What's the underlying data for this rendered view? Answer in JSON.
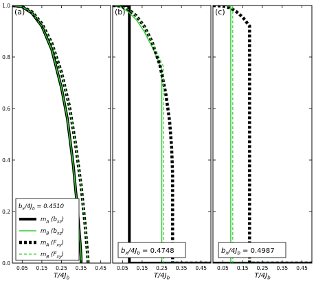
{
  "chart_data": [
    {
      "type": "line",
      "panel_label": "(a)",
      "xlabel": "T/4J_b",
      "xlim": [
        0,
        0.5
      ],
      "ylim": [
        0,
        1.0
      ],
      "xticks": [
        0.05,
        0.15,
        0.25,
        0.35,
        0.45
      ],
      "yticks": [
        0.0,
        0.2,
        0.4,
        0.6,
        0.8,
        1.0
      ],
      "legend_title": "b_x/4J_b = 0.4510",
      "legend": [
        "m_A (b_xz)",
        "m_B (b_xz)",
        "m_A (F_xy)",
        "m_B (F_xy)"
      ],
      "series": [
        {
          "name": "m_A (b_xz)",
          "style": "solid-thick",
          "color": "#000000",
          "x": [
            0.0,
            0.05,
            0.1,
            0.15,
            0.2,
            0.25,
            0.28,
            0.31,
            0.33,
            0.345,
            0.35,
            0.35
          ],
          "y": [
            1.0,
            0.995,
            0.97,
            0.92,
            0.83,
            0.68,
            0.56,
            0.38,
            0.22,
            0.08,
            0.02,
            0.0
          ]
        },
        {
          "name": "m_B (b_xz)",
          "style": "solid-thin",
          "color": "#33cc33",
          "x": [
            0.0,
            0.05,
            0.1,
            0.15,
            0.2,
            0.25,
            0.28,
            0.31,
            0.33,
            0.345,
            0.35,
            0.35
          ],
          "y": [
            1.0,
            0.995,
            0.97,
            0.92,
            0.83,
            0.68,
            0.56,
            0.38,
            0.22,
            0.08,
            0.02,
            0.0
          ]
        },
        {
          "name": "m_A (F_xy)",
          "style": "dotted-thick",
          "color": "#000000",
          "x": [
            0.0,
            0.05,
            0.1,
            0.15,
            0.2,
            0.25,
            0.29,
            0.32,
            0.35,
            0.37,
            0.38,
            0.385,
            0.385
          ],
          "y": [
            1.0,
            0.995,
            0.975,
            0.93,
            0.855,
            0.74,
            0.61,
            0.47,
            0.3,
            0.15,
            0.06,
            0.01,
            0.0
          ]
        },
        {
          "name": "m_B (F_xy)",
          "style": "dashed-thin",
          "color": "#33cc33",
          "x": [
            0.0,
            0.05,
            0.1,
            0.15,
            0.2,
            0.25,
            0.29,
            0.32,
            0.35,
            0.37,
            0.38,
            0.385,
            0.385
          ],
          "y": [
            1.0,
            0.995,
            0.975,
            0.93,
            0.855,
            0.74,
            0.61,
            0.47,
            0.3,
            0.15,
            0.06,
            0.01,
            0.0
          ]
        }
      ]
    },
    {
      "type": "line",
      "panel_label": "(b)",
      "xlabel": "T/4J_b",
      "xlim": [
        0,
        0.5
      ],
      "ylim": [
        0,
        1.0
      ],
      "xticks": [
        0.05,
        0.15,
        0.25,
        0.35,
        0.45
      ],
      "box_label": "b_x/4J_b = ",
      "box_value": "0.4748",
      "series": [
        {
          "name": "m_A (b_xz)",
          "style": "solid-thick",
          "color": "#000000",
          "x": [
            0.0,
            0.085,
            0.085,
            0.5
          ],
          "y": [
            1.0,
            1.0,
            0.0,
            0.0
          ]
        },
        {
          "name": "m_B (b_xz)",
          "style": "solid-thin",
          "color": "#33cc33",
          "x": [
            0.0,
            0.04,
            0.08,
            0.12,
            0.16,
            0.2,
            0.23,
            0.25,
            0.25,
            0.5
          ],
          "y": [
            1.0,
            0.995,
            0.975,
            0.945,
            0.9,
            0.84,
            0.79,
            0.75,
            0.0,
            0.0
          ]
        },
        {
          "name": "m_A (F_xy)",
          "style": "dotted-thick",
          "color": "#000000",
          "x": [
            0.0,
            0.04,
            0.08,
            0.12,
            0.16,
            0.2,
            0.24,
            0.27,
            0.29,
            0.3,
            0.305,
            0.305,
            0.5
          ],
          "y": [
            1.0,
            0.998,
            0.985,
            0.96,
            0.92,
            0.86,
            0.77,
            0.66,
            0.55,
            0.45,
            0.35,
            0.0,
            0.0
          ]
        },
        {
          "name": "m_B (F_xy)",
          "style": "dashed-thin",
          "color": "#33cc33",
          "x": [
            0.0,
            0.04,
            0.08,
            0.12,
            0.16,
            0.2,
            0.23,
            0.26,
            0.26,
            0.5
          ],
          "y": [
            1.0,
            0.998,
            0.985,
            0.96,
            0.92,
            0.86,
            0.81,
            0.76,
            0.0,
            0.0
          ]
        }
      ]
    },
    {
      "type": "line",
      "panel_label": "(c)",
      "xlabel": "T/4J_b",
      "xlim": [
        0,
        0.5
      ],
      "ylim": [
        0,
        1.0
      ],
      "xticks": [
        0.05,
        0.15,
        0.25,
        0.35,
        0.45
      ],
      "box_label": "b_x/4J_b = ",
      "box_value": "0.4987",
      "series": [
        {
          "name": "m_A (b_xz)",
          "style": "solid-thick",
          "color": "#000000",
          "x": [
            0.0,
            0.5
          ],
          "y": [
            0.0,
            0.0
          ]
        },
        {
          "name": "m_B (b_xz)",
          "style": "solid-thin",
          "color": "#33cc33",
          "x": [
            0.0,
            0.06,
            0.09,
            0.09,
            0.5
          ],
          "y": [
            1.0,
            1.0,
            0.995,
            0.0,
            0.0
          ]
        },
        {
          "name": "m_A (F_xy)",
          "style": "dotted-thick",
          "color": "#000000",
          "x": [
            0.0,
            0.05,
            0.09,
            0.12,
            0.15,
            0.17,
            0.18,
            0.185,
            0.185,
            0.5
          ],
          "y": [
            1.0,
            0.998,
            0.99,
            0.975,
            0.955,
            0.935,
            0.925,
            0.92,
            0.0,
            0.0
          ]
        },
        {
          "name": "m_B (F_xy)",
          "style": "dashed-thin",
          "color": "#33cc33",
          "x": [
            0.0,
            0.06,
            0.1,
            0.1,
            0.5
          ],
          "y": [
            1.0,
            1.0,
            0.995,
            0.0,
            0.0
          ]
        }
      ]
    }
  ]
}
